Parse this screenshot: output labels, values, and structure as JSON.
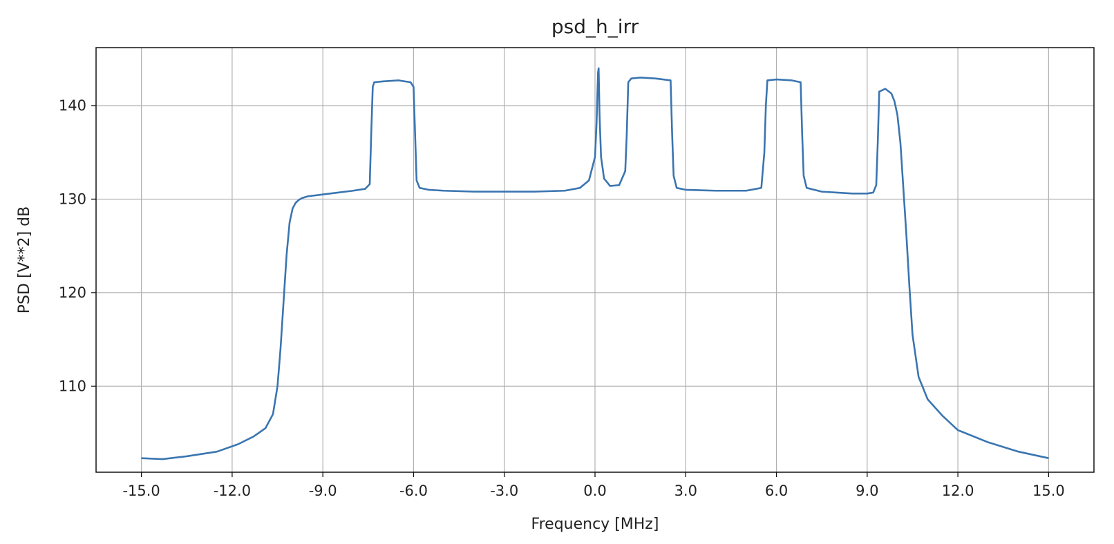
{
  "chart_data": {
    "type": "line",
    "title": "psd_h_irr",
    "xlabel": "Frequency [MHz]",
    "ylabel": "PSD [V**2] dB",
    "xlim": [
      -16.5,
      16.5
    ],
    "ylim": [
      100.8,
      146.2
    ],
    "x_ticks": [
      -15,
      -12,
      -9,
      -6,
      -3,
      0,
      3,
      6,
      9,
      12,
      15
    ],
    "x_tick_labels": [
      "-15.0",
      "-12.0",
      "-9.0",
      "-6.0",
      "-3.0",
      "0.0",
      "3.0",
      "6.0",
      "9.0",
      "12.0",
      "15.0"
    ],
    "y_ticks": [
      110,
      120,
      130,
      140
    ],
    "y_tick_labels": [
      "110",
      "120",
      "130",
      "140"
    ],
    "grid": true,
    "line_color": "#3a75b0",
    "series": [
      {
        "x": [
          -15.0,
          -14.3,
          -13.5,
          -12.5,
          -11.8,
          -11.3,
          -10.9,
          -10.65,
          -10.5,
          -10.4,
          -10.3,
          -10.2,
          -10.1,
          -10.0,
          -9.9,
          -9.8,
          -9.7,
          -9.5,
          -9.0,
          -8.5,
          -8.0,
          -7.6,
          -7.45,
          -7.4,
          -7.35,
          -7.3,
          -7.0,
          -6.5,
          -6.1,
          -6.0,
          -5.95,
          -5.9,
          -5.8,
          -5.5,
          -5.0,
          -4.0,
          -3.0,
          -2.0,
          -1.0,
          -0.5,
          -0.2,
          0.0,
          0.05,
          0.1,
          0.12,
          0.15,
          0.2,
          0.3,
          0.5,
          0.8,
          1.0,
          1.05,
          1.1,
          1.2,
          1.5,
          2.0,
          2.5,
          2.55,
          2.6,
          2.7,
          3.0,
          4.0,
          5.0,
          5.5,
          5.6,
          5.65,
          5.7,
          6.0,
          6.5,
          6.8,
          6.85,
          6.9,
          7.0,
          7.5,
          8.0,
          8.5,
          9.0,
          9.2,
          9.3,
          9.35,
          9.4,
          9.6,
          9.8,
          9.9,
          10.0,
          10.1,
          10.2,
          10.3,
          10.4,
          10.5,
          10.7,
          11.0,
          11.5,
          12.0,
          13.0,
          14.0,
          15.0
        ],
        "y": [
          102.3,
          102.2,
          102.5,
          103.0,
          103.8,
          104.6,
          105.5,
          107.0,
          110.0,
          114.0,
          119.0,
          124.0,
          127.5,
          129.0,
          129.6,
          129.9,
          130.1,
          130.3,
          130.5,
          130.7,
          130.9,
          131.1,
          131.6,
          137.0,
          142.0,
          142.5,
          142.6,
          142.7,
          142.5,
          142.0,
          137.0,
          132.0,
          131.2,
          131.0,
          130.9,
          130.8,
          130.8,
          130.8,
          130.9,
          131.2,
          132.0,
          134.5,
          138.0,
          143.5,
          144.0,
          139.0,
          134.5,
          132.2,
          131.4,
          131.5,
          133.0,
          137.0,
          142.5,
          142.9,
          143.0,
          142.9,
          142.7,
          137.0,
          132.5,
          131.2,
          131.0,
          130.9,
          130.9,
          131.2,
          135.0,
          140.0,
          142.7,
          142.8,
          142.7,
          142.5,
          137.0,
          132.5,
          131.2,
          130.8,
          130.7,
          130.6,
          130.6,
          130.7,
          131.5,
          136.0,
          141.5,
          141.8,
          141.3,
          140.5,
          139.0,
          136.0,
          131.0,
          126.0,
          120.5,
          115.5,
          111.0,
          108.6,
          106.8,
          105.3,
          104.0,
          103.0,
          102.3
        ]
      }
    ]
  }
}
